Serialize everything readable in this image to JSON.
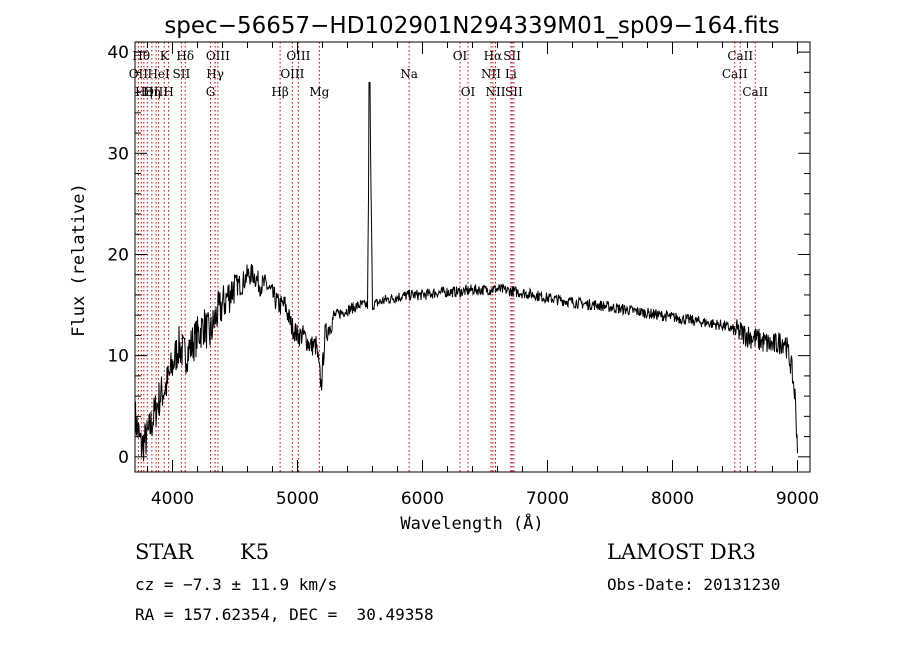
{
  "chart_data": {
    "type": "line",
    "title": "spec−56657−HD102901N294339M01_sp09−164.fits",
    "xlabel": "Wavelength (Å)",
    "ylabel": "Flux (relative)",
    "xlim": [
      3700,
      9100
    ],
    "ylim": [
      -1.5,
      41
    ],
    "xticks": [
      4000,
      5000,
      6000,
      7000,
      8000,
      9000
    ],
    "yticks": [
      0,
      10,
      20,
      30,
      40
    ],
    "grid": false,
    "series": [
      {
        "x": [
          3700,
          3750,
          3800,
          3850,
          3900,
          3950,
          4000,
          4050,
          4100,
          4150,
          4200,
          4250,
          4300,
          4350,
          4400,
          4450,
          4500,
          4550,
          4600,
          4650,
          4700,
          4750,
          4800,
          4850,
          4900,
          4950,
          5000,
          5050,
          5100,
          5150,
          5190,
          5220,
          5300,
          5400,
          5500,
          5560,
          5577,
          5600,
          5700,
          5800,
          5900,
          6000,
          6100,
          6200,
          6300,
          6400,
          6500,
          6600,
          6700,
          6800,
          6900,
          7000,
          7100,
          7200,
          7300,
          7400,
          7500,
          7600,
          7700,
          7800,
          7900,
          8000,
          8100,
          8200,
          8300,
          8400,
          8500,
          8600,
          8700,
          8800,
          8900,
          8950,
          8980,
          9000
        ],
        "y": [
          4,
          1,
          2,
          4,
          6,
          7,
          9,
          11,
          10,
          11,
          12,
          13,
          12,
          14,
          15,
          16,
          17,
          17,
          18,
          18,
          17,
          17,
          16,
          15,
          15,
          13,
          12,
          12,
          11,
          11,
          7,
          12,
          14,
          14.5,
          15,
          15,
          37,
          15,
          15.5,
          15.8,
          16,
          16,
          16.2,
          16.3,
          16.3,
          16.5,
          16.5,
          16.6,
          16.4,
          16.2,
          16,
          15.7,
          15.5,
          15.3,
          15.1,
          15,
          14.8,
          14.6,
          14.4,
          14.2,
          14,
          13.8,
          13.6,
          13.4,
          13.2,
          13,
          12.5,
          12,
          11.5,
          11,
          11.5,
          9,
          6,
          1
        ]
      }
    ],
    "lines": [
      {
        "x": 3727,
        "label": "OII",
        "row": 1
      },
      {
        "x": 3750,
        "label": "Hθ",
        "row": 0
      },
      {
        "x": 3771,
        "label": "Hη",
        "row": 2
      },
      {
        "x": 3798,
        "label": "",
        "row": 0
      },
      {
        "x": 3835,
        "label": "Hη",
        "row": 2
      },
      {
        "x": 3869,
        "label": "OIII",
        "row": 2
      },
      {
        "x": 3889,
        "label": "HeI",
        "row": 1
      },
      {
        "x": 3934,
        "label": "K",
        "row": 0
      },
      {
        "x": 3969,
        "label": "H",
        "row": 2
      },
      {
        "x": 4071,
        "label": "SII",
        "row": 1
      },
      {
        "x": 4102,
        "label": "Hδ",
        "row": 0
      },
      {
        "x": 4304,
        "label": "G",
        "row": 2
      },
      {
        "x": 4341,
        "label": "Hγ",
        "row": 1
      },
      {
        "x": 4363,
        "label": "OIII",
        "row": 0
      },
      {
        "x": 4861,
        "label": "Hβ",
        "row": 2
      },
      {
        "x": 4959,
        "label": "OIII",
        "row": 1
      },
      {
        "x": 5007,
        "label": "OIII",
        "row": 0
      },
      {
        "x": 5175,
        "label": "Mg",
        "row": 2
      },
      {
        "x": 5893,
        "label": "Na",
        "row": 1
      },
      {
        "x": 6300,
        "label": "OI",
        "row": 0
      },
      {
        "x": 6364,
        "label": "OI",
        "row": 2
      },
      {
        "x": 6548,
        "label": "NII",
        "row": 1
      },
      {
        "x": 6563,
        "label": "Hα",
        "row": 0
      },
      {
        "x": 6584,
        "label": "NII",
        "row": 2
      },
      {
        "x": 6707,
        "label": "Li",
        "row": 1
      },
      {
        "x": 6717,
        "label": "SII",
        "row": 0
      },
      {
        "x": 6731,
        "label": "SII",
        "row": 2
      },
      {
        "x": 8498,
        "label": "CaII",
        "row": 1
      },
      {
        "x": 8542,
        "label": "CaII",
        "row": 0
      },
      {
        "x": 8662,
        "label": "CaII",
        "row": 2
      }
    ]
  },
  "info": {
    "class": "STAR",
    "subclass": "K5",
    "survey": "LAMOST DR3",
    "cz": "cz = −7.3 ± 11.9 km/s",
    "obs_date": "Obs-Date: 20131230",
    "coords": "RA = 157.62354, DEC =  30.49358"
  }
}
